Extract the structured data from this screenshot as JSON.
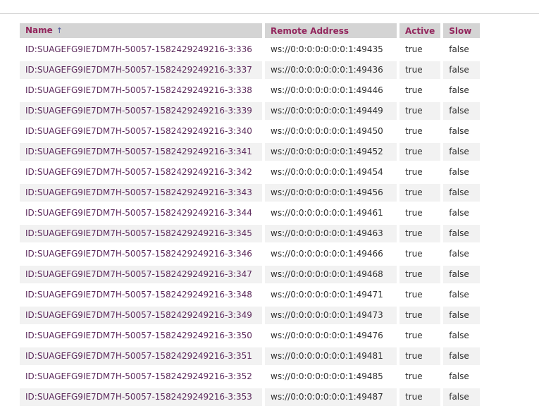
{
  "page": {
    "kind": "connections-table-view"
  },
  "colors": {
    "header_background": "#d4d4d4",
    "header_text": "#93265d",
    "name_link_text": "#5d2b5d",
    "row_stripe": "#f2f2f2",
    "divider": "#cccccc",
    "sort_arrow": "#4a5497",
    "body_text": "#2f2f2f"
  },
  "table": {
    "columns": [
      {
        "label": "Name",
        "sort_indicator": "↑"
      },
      {
        "label": "Remote Address"
      },
      {
        "label": "Active"
      },
      {
        "label": "Slow"
      }
    ],
    "rows": [
      {
        "name": "ID:SUAGEFG9IE7DM7H-50057-1582429249216-3:336",
        "remote_address": "ws://0:0:0:0:0:0:0:1:49435",
        "active": "true",
        "slow": "false"
      },
      {
        "name": "ID:SUAGEFG9IE7DM7H-50057-1582429249216-3:337",
        "remote_address": "ws://0:0:0:0:0:0:0:1:49436",
        "active": "true",
        "slow": "false"
      },
      {
        "name": "ID:SUAGEFG9IE7DM7H-50057-1582429249216-3:338",
        "remote_address": "ws://0:0:0:0:0:0:0:1:49446",
        "active": "true",
        "slow": "false"
      },
      {
        "name": "ID:SUAGEFG9IE7DM7H-50057-1582429249216-3:339",
        "remote_address": "ws://0:0:0:0:0:0:0:1:49449",
        "active": "true",
        "slow": "false"
      },
      {
        "name": "ID:SUAGEFG9IE7DM7H-50057-1582429249216-3:340",
        "remote_address": "ws://0:0:0:0:0:0:0:1:49450",
        "active": "true",
        "slow": "false"
      },
      {
        "name": "ID:SUAGEFG9IE7DM7H-50057-1582429249216-3:341",
        "remote_address": "ws://0:0:0:0:0:0:0:1:49452",
        "active": "true",
        "slow": "false"
      },
      {
        "name": "ID:SUAGEFG9IE7DM7H-50057-1582429249216-3:342",
        "remote_address": "ws://0:0:0:0:0:0:0:1:49454",
        "active": "true",
        "slow": "false"
      },
      {
        "name": "ID:SUAGEFG9IE7DM7H-50057-1582429249216-3:343",
        "remote_address": "ws://0:0:0:0:0:0:0:1:49456",
        "active": "true",
        "slow": "false"
      },
      {
        "name": "ID:SUAGEFG9IE7DM7H-50057-1582429249216-3:344",
        "remote_address": "ws://0:0:0:0:0:0:0:1:49461",
        "active": "true",
        "slow": "false"
      },
      {
        "name": "ID:SUAGEFG9IE7DM7H-50057-1582429249216-3:345",
        "remote_address": "ws://0:0:0:0:0:0:0:1:49463",
        "active": "true",
        "slow": "false"
      },
      {
        "name": "ID:SUAGEFG9IE7DM7H-50057-1582429249216-3:346",
        "remote_address": "ws://0:0:0:0:0:0:0:1:49466",
        "active": "true",
        "slow": "false"
      },
      {
        "name": "ID:SUAGEFG9IE7DM7H-50057-1582429249216-3:347",
        "remote_address": "ws://0:0:0:0:0:0:0:1:49468",
        "active": "true",
        "slow": "false"
      },
      {
        "name": "ID:SUAGEFG9IE7DM7H-50057-1582429249216-3:348",
        "remote_address": "ws://0:0:0:0:0:0:0:1:49471",
        "active": "true",
        "slow": "false"
      },
      {
        "name": "ID:SUAGEFG9IE7DM7H-50057-1582429249216-3:349",
        "remote_address": "ws://0:0:0:0:0:0:0:1:49473",
        "active": "true",
        "slow": "false"
      },
      {
        "name": "ID:SUAGEFG9IE7DM7H-50057-1582429249216-3:350",
        "remote_address": "ws://0:0:0:0:0:0:0:1:49476",
        "active": "true",
        "slow": "false"
      },
      {
        "name": "ID:SUAGEFG9IE7DM7H-50057-1582429249216-3:351",
        "remote_address": "ws://0:0:0:0:0:0:0:1:49481",
        "active": "true",
        "slow": "false"
      },
      {
        "name": "ID:SUAGEFG9IE7DM7H-50057-1582429249216-3:352",
        "remote_address": "ws://0:0:0:0:0:0:0:1:49485",
        "active": "true",
        "slow": "false"
      },
      {
        "name": "ID:SUAGEFG9IE7DM7H-50057-1582429249216-3:353",
        "remote_address": "ws://0:0:0:0:0:0:0:1:49487",
        "active": "true",
        "slow": "false"
      }
    ]
  }
}
